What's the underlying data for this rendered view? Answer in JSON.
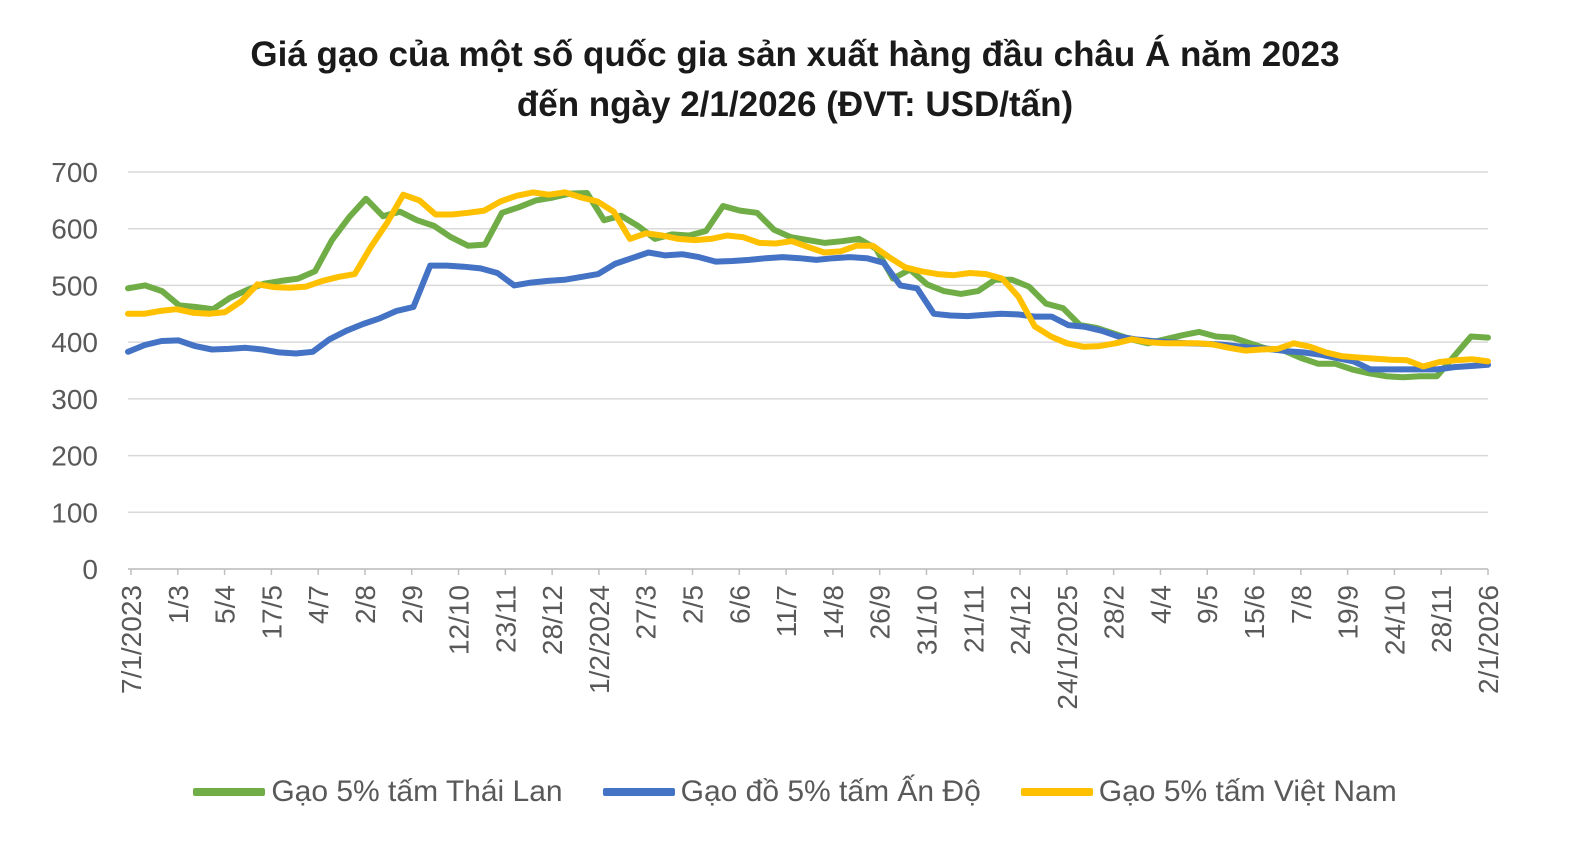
{
  "chart_data": {
    "type": "line",
    "title_line1": "Giá gạo của một số quốc gia sản xuất hàng đầu châu Á năm 2023",
    "title_line2": "đến ngày 2/1/2026 (ĐVT: USD/tấn)",
    "ylim": [
      0,
      700
    ],
    "yticks": [
      0,
      100,
      200,
      300,
      400,
      500,
      600,
      700
    ],
    "grid": true,
    "legend_position": "bottom",
    "x_labels": [
      "7/1/2023",
      "1/3",
      "5/4",
      "17/5",
      "4/7",
      "2/8",
      "2/9",
      "12/10",
      "23/11",
      "28/12",
      "1/2/2024",
      "27/3",
      "2/5",
      "6/6",
      "11/7",
      "14/8",
      "26/9",
      "31/10",
      "21/11",
      "24/12",
      "24/1/2025",
      "28/2",
      "4/4",
      "9/5",
      "15/6",
      "7/8",
      "19/9",
      "24/10",
      "28/11",
      "2/1/2026"
    ],
    "series": [
      {
        "name": "Gạo 5% tấm Thái Lan",
        "color": "#70ad47",
        "values": [
          495,
          500,
          490,
          465,
          462,
          458,
          478,
          492,
          503,
          508,
          512,
          525,
          580,
          620,
          653,
          622,
          630,
          615,
          605,
          585,
          570,
          572,
          628,
          638,
          650,
          655,
          662,
          663,
          615,
          623,
          605,
          582,
          590,
          588,
          596,
          640,
          632,
          628,
          598,
          585,
          580,
          575,
          578,
          582,
          565,
          512,
          528,
          502,
          490,
          485,
          490,
          510,
          510,
          498,
          468,
          460,
          430,
          425,
          415,
          405,
          398,
          405,
          412,
          418,
          410,
          408,
          398,
          388,
          385,
          372,
          362,
          362,
          352,
          345,
          340,
          338,
          340,
          340,
          375,
          410,
          408
        ]
      },
      {
        "name": "Gạo đồ 5% tấm Ấn Độ",
        "color": "#4472c4",
        "values": [
          383,
          395,
          402,
          403,
          393,
          387,
          388,
          390,
          387,
          382,
          380,
          383,
          405,
          420,
          432,
          442,
          455,
          462,
          535,
          535,
          533,
          530,
          522,
          500,
          505,
          508,
          510,
          515,
          520,
          538,
          548,
          558,
          553,
          555,
          550,
          542,
          543,
          545,
          548,
          550,
          548,
          545,
          548,
          550,
          548,
          540,
          500,
          495,
          450,
          447,
          446,
          448,
          450,
          449,
          445,
          445,
          430,
          427,
          420,
          410,
          405,
          402,
          400,
          398,
          397,
          396,
          393,
          390,
          388,
          384,
          382,
          378,
          372,
          366,
          352,
          352,
          352,
          352,
          352,
          356,
          358,
          360
        ]
      },
      {
        "name": "Gạo 5% tấm Việt Nam",
        "color": "#ffc000",
        "values": [
          450,
          450,
          455,
          458,
          452,
          450,
          453,
          472,
          502,
          497,
          496,
          498,
          508,
          515,
          520,
          568,
          610,
          660,
          650,
          625,
          625,
          628,
          632,
          648,
          658,
          664,
          660,
          664,
          655,
          648,
          630,
          582,
          592,
          588,
          582,
          580,
          582,
          588,
          585,
          575,
          574,
          578,
          568,
          558,
          560,
          570,
          570,
          550,
          532,
          525,
          520,
          518,
          522,
          520,
          512,
          480,
          428,
          410,
          398,
          392,
          393,
          398,
          405,
          400,
          398,
          398,
          398,
          396,
          390,
          385,
          387,
          388,
          398,
          392,
          382,
          375,
          373,
          371,
          369,
          368,
          357,
          365,
          368,
          370,
          366
        ]
      }
    ]
  }
}
